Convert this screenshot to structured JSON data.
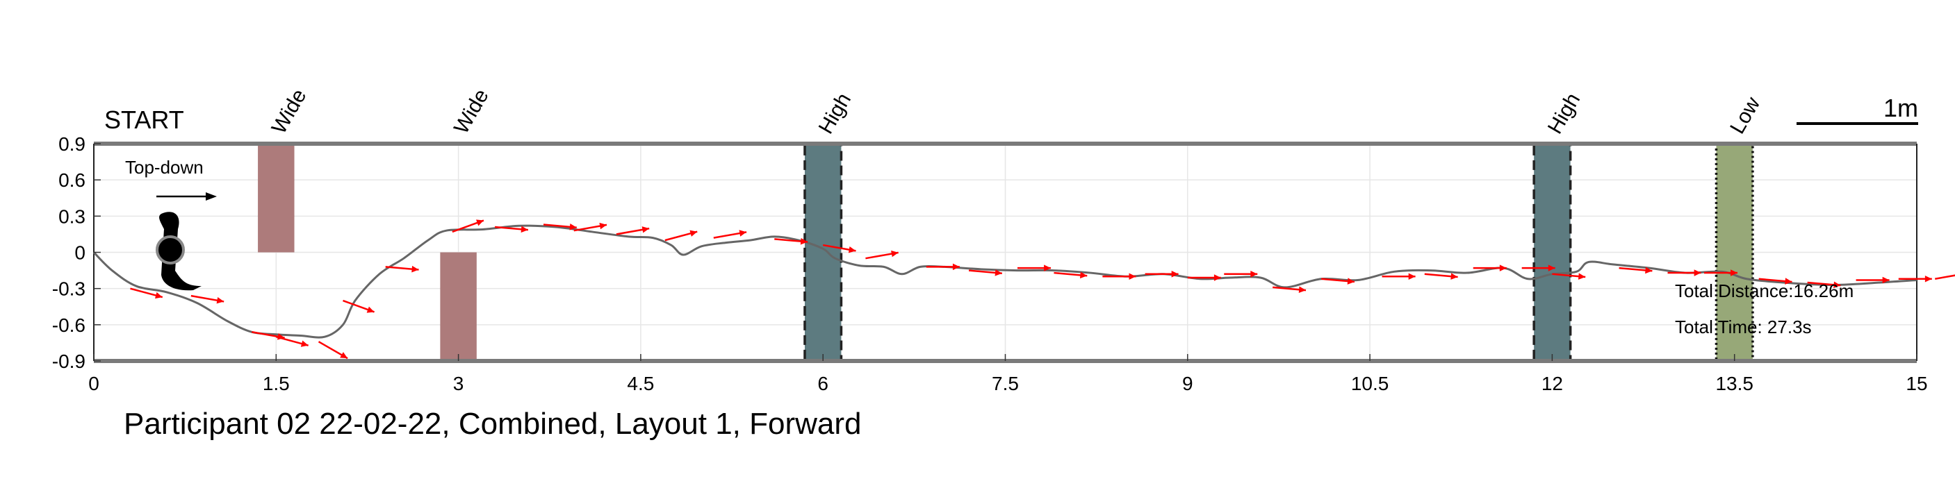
{
  "chart_data": {
    "type": "line",
    "title": "Participant 02 22-02-22, Combined, Layout 1, Forward",
    "xlim": [
      0,
      15
    ],
    "ylim": [
      -0.9,
      0.9
    ],
    "x_ticks": [
      "0",
      "1.5",
      "3",
      "4.5",
      "6",
      "7.5",
      "9",
      "10.5",
      "12",
      "13.5",
      "15"
    ],
    "y_ticks": [
      "0.9",
      "0.6",
      "0.3",
      "0",
      "-0.3",
      "-0.6",
      "-0.9"
    ],
    "grid": true,
    "start_label": "START",
    "scale_label": "1m",
    "inset_label": "Top-down",
    "stats": {
      "distance": "Total Distance:16.26m",
      "time": "Total Time: 27.3s"
    },
    "path_color": "#666666",
    "arrow_color": "#ff0000",
    "obstacles": [
      {
        "label": "Wide",
        "x0": 1.35,
        "x1": 1.65,
        "y0": 0.0,
        "y1": 0.9,
        "color": "#ad7b7b",
        "border": "none"
      },
      {
        "label": "Wide",
        "x0": 2.85,
        "x1": 3.15,
        "y0": -0.9,
        "y1": 0.0,
        "color": "#ad7b7b",
        "border": "none"
      },
      {
        "label": "High",
        "x0": 5.85,
        "x1": 6.15,
        "y0": -0.9,
        "y1": 0.9,
        "color": "#5d7b80",
        "border": "dashed"
      },
      {
        "label": "High",
        "x0": 11.85,
        "x1": 12.15,
        "y0": -0.9,
        "y1": 0.9,
        "color": "#5d7b80",
        "border": "dashed"
      },
      {
        "label": "Low",
        "x0": 13.35,
        "x1": 13.65,
        "y0": -0.9,
        "y1": 0.9,
        "color": "#97a878",
        "border": "dotted"
      }
    ],
    "path": [
      [
        0,
        0
      ],
      [
        0.15,
        -0.15
      ],
      [
        0.35,
        -0.28
      ],
      [
        0.6,
        -0.33
      ],
      [
        0.85,
        -0.42
      ],
      [
        1.1,
        -0.57
      ],
      [
        1.3,
        -0.66
      ],
      [
        1.5,
        -0.68
      ],
      [
        1.7,
        -0.69
      ],
      [
        1.9,
        -0.7
      ],
      [
        2.05,
        -0.6
      ],
      [
        2.15,
        -0.4
      ],
      [
        2.35,
        -0.18
      ],
      [
        2.55,
        -0.05
      ],
      [
        2.75,
        0.1
      ],
      [
        2.9,
        0.18
      ],
      [
        3.2,
        0.19
      ],
      [
        3.5,
        0.22
      ],
      [
        3.8,
        0.21
      ],
      [
        4.1,
        0.17
      ],
      [
        4.4,
        0.13
      ],
      [
        4.6,
        0.12
      ],
      [
        4.75,
        0.06
      ],
      [
        4.85,
        -0.02
      ],
      [
        5.0,
        0.05
      ],
      [
        5.2,
        0.08
      ],
      [
        5.4,
        0.1
      ],
      [
        5.6,
        0.13
      ],
      [
        5.8,
        0.1
      ],
      [
        6.0,
        0.03
      ],
      [
        6.1,
        -0.05
      ],
      [
        6.3,
        -0.11
      ],
      [
        6.5,
        -0.12
      ],
      [
        6.65,
        -0.18
      ],
      [
        6.8,
        -0.12
      ],
      [
        7.0,
        -0.12
      ],
      [
        7.3,
        -0.14
      ],
      [
        7.6,
        -0.15
      ],
      [
        7.9,
        -0.15
      ],
      [
        8.2,
        -0.17
      ],
      [
        8.5,
        -0.2
      ],
      [
        8.8,
        -0.18
      ],
      [
        9.1,
        -0.22
      ],
      [
        9.35,
        -0.21
      ],
      [
        9.6,
        -0.21
      ],
      [
        9.8,
        -0.29
      ],
      [
        10.1,
        -0.22
      ],
      [
        10.4,
        -0.23
      ],
      [
        10.7,
        -0.16
      ],
      [
        11.0,
        -0.15
      ],
      [
        11.3,
        -0.17
      ],
      [
        11.6,
        -0.13
      ],
      [
        11.8,
        -0.22
      ],
      [
        12.0,
        -0.18
      ],
      [
        12.2,
        -0.16
      ],
      [
        12.3,
        -0.08
      ],
      [
        12.5,
        -0.1
      ],
      [
        12.8,
        -0.13
      ],
      [
        13.1,
        -0.17
      ],
      [
        13.4,
        -0.16
      ],
      [
        13.6,
        -0.22
      ],
      [
        13.9,
        -0.25
      ],
      [
        14.3,
        -0.27
      ],
      [
        14.7,
        -0.25
      ],
      [
        15.0,
        -0.23
      ]
    ],
    "arrows": [
      [
        0.3,
        -0.3,
        15
      ],
      [
        0.8,
        -0.36,
        10
      ],
      [
        1.3,
        -0.66,
        10
      ],
      [
        1.5,
        -0.7,
        15
      ],
      [
        1.85,
        -0.74,
        30
      ],
      [
        2.05,
        -0.4,
        20
      ],
      [
        2.4,
        -0.12,
        5
      ],
      [
        2.95,
        0.17,
        -20
      ],
      [
        3.3,
        0.21,
        5
      ],
      [
        3.7,
        0.23,
        5
      ],
      [
        3.95,
        0.18,
        -10
      ],
      [
        4.3,
        0.15,
        -10
      ],
      [
        4.7,
        0.1,
        -15
      ],
      [
        5.1,
        0.12,
        -10
      ],
      [
        5.6,
        0.11,
        5
      ],
      [
        6.0,
        0.06,
        10
      ],
      [
        6.35,
        -0.05,
        -10
      ],
      [
        6.85,
        -0.12,
        0
      ],
      [
        7.2,
        -0.15,
        5
      ],
      [
        7.6,
        -0.13,
        0
      ],
      [
        7.9,
        -0.17,
        5
      ],
      [
        8.3,
        -0.2,
        0
      ],
      [
        8.65,
        -0.18,
        0
      ],
      [
        9.0,
        -0.21,
        0
      ],
      [
        9.3,
        -0.18,
        0
      ],
      [
        9.7,
        -0.29,
        5
      ],
      [
        10.1,
        -0.22,
        5
      ],
      [
        10.6,
        -0.2,
        0
      ],
      [
        10.95,
        -0.18,
        5
      ],
      [
        11.35,
        -0.13,
        0
      ],
      [
        11.75,
        -0.13,
        0
      ],
      [
        12.0,
        -0.18,
        5
      ],
      [
        12.55,
        -0.13,
        5
      ],
      [
        12.95,
        -0.17,
        0
      ],
      [
        13.25,
        -0.17,
        0
      ],
      [
        13.7,
        -0.22,
        5
      ],
      [
        14.1,
        -0.25,
        5
      ],
      [
        14.5,
        -0.23,
        0
      ],
      [
        14.85,
        -0.22,
        0
      ],
      [
        15.15,
        -0.22,
        -10
      ]
    ]
  }
}
